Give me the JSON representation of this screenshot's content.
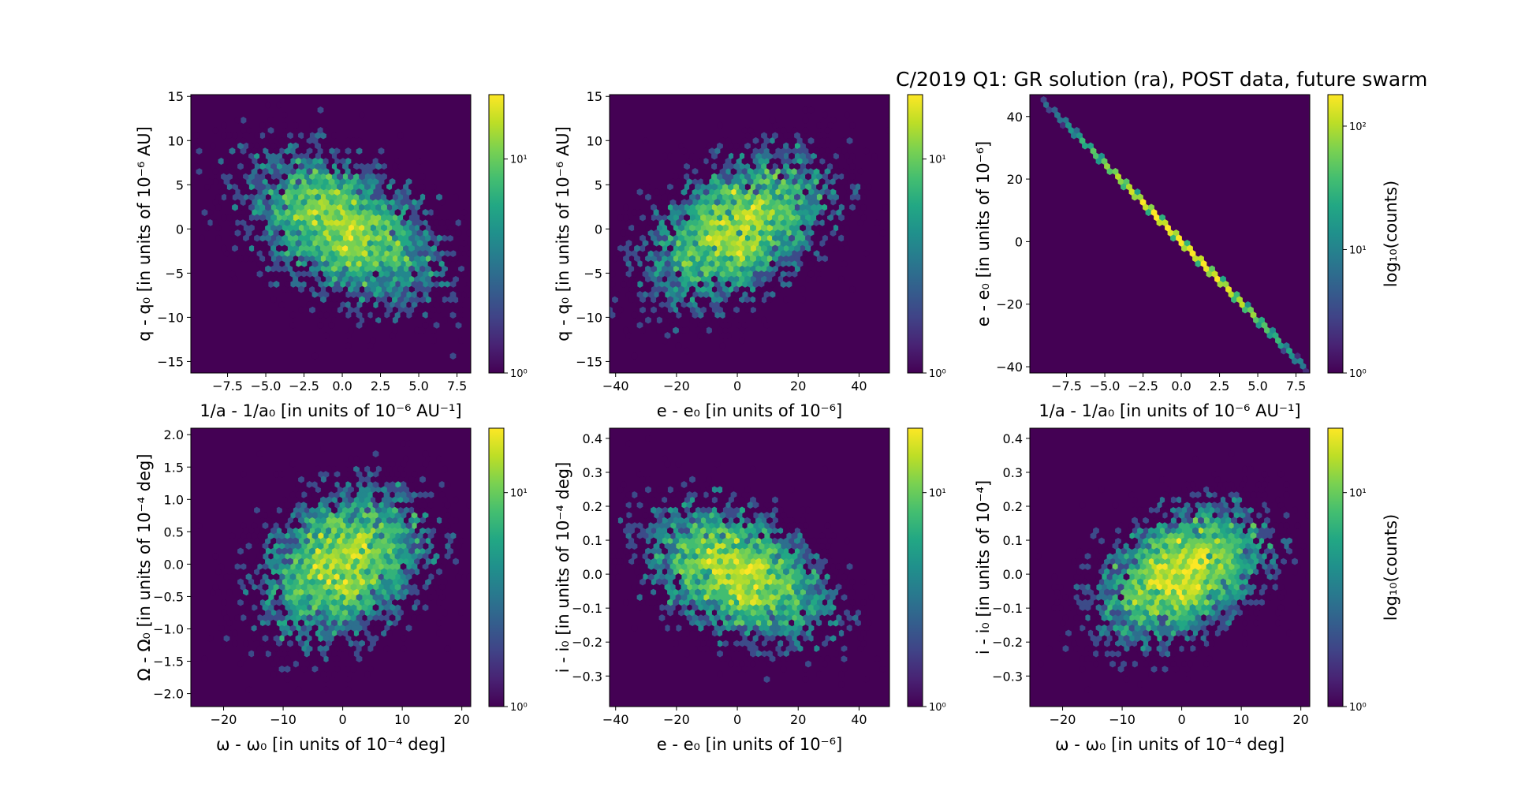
{
  "figure": {
    "title": "C/2019 Q1: GR solution (ra), POST data, future swarm"
  },
  "colors": {
    "viridis_low": "#440154",
    "viridis_mid": "#21918c",
    "viridis_high": "#fde725",
    "axis": "#000000"
  },
  "chart_data": [
    {
      "type": "heatmap",
      "subtype": "hexbin",
      "panel": "top-left",
      "xlabel": "1/a - 1/a₀ [in units of 10⁻⁶ AU⁻¹]",
      "ylabel": "q - q₀ [in units of 10⁻⁶ AU]",
      "xlim": [
        -9.9,
        8.4
      ],
      "ylim": [
        -16.3,
        15.2
      ],
      "xticks": [
        -7.5,
        -5.0,
        -2.5,
        0.0,
        2.5,
        5.0,
        7.5
      ],
      "xticklabels": [
        "−7.5",
        "−5.0",
        "−2.5",
        "0.0",
        "2.5",
        "5.0",
        "7.5"
      ],
      "yticks": [
        -15,
        -10,
        -5,
        0,
        5,
        10,
        15
      ],
      "yticklabels": [
        "−15",
        "−10",
        "−5",
        "0",
        "5",
        "10",
        "15"
      ],
      "distribution": {
        "center": [
          0,
          0
        ],
        "sd": [
          3.2,
          4.3
        ],
        "correlation": -0.45,
        "peak_count": 20,
        "points": 5000
      },
      "colorbar": {
        "scale": "log",
        "min": 1,
        "max": 20,
        "ticks": [
          "10⁰",
          "10¹"
        ],
        "label": ""
      }
    },
    {
      "type": "heatmap",
      "subtype": "hexbin",
      "panel": "top-middle",
      "xlabel": "e - e₀ [in units of 10⁻⁶]",
      "ylabel": "q - q₀ [in units of 10⁻⁶ AU]",
      "xlim": [
        -42,
        50
      ],
      "ylim": [
        -16.3,
        15.2
      ],
      "xticks": [
        -40,
        -20,
        0,
        20,
        40
      ],
      "xticklabels": [
        "−40",
        "−20",
        "0",
        "20",
        "40"
      ],
      "yticks": [
        -15,
        -10,
        -5,
        0,
        5,
        10,
        15
      ],
      "yticklabels": [
        "−15",
        "−10",
        "−5",
        "0",
        "5",
        "10",
        "15"
      ],
      "distribution": {
        "center": [
          0,
          0
        ],
        "sd": [
          15,
          4.3
        ],
        "correlation": 0.45,
        "peak_count": 20,
        "points": 5000
      },
      "colorbar": {
        "scale": "log",
        "min": 1,
        "max": 20,
        "ticks": [
          "10⁰",
          "10¹"
        ],
        "label": ""
      }
    },
    {
      "type": "heatmap",
      "subtype": "hexbin",
      "panel": "top-right",
      "xlabel": "1/a - 1/a₀ [in units of 10⁻⁶ AU⁻¹]",
      "ylabel": "e - e₀ [in units of 10⁻⁶]",
      "xlim": [
        -9.9,
        8.4
      ],
      "ylim": [
        -42,
        47
      ],
      "xticks": [
        -7.5,
        -5.0,
        -2.5,
        0.0,
        2.5,
        5.0,
        7.5
      ],
      "xticklabels": [
        "−7.5",
        "−5.0",
        "−2.5",
        "0.0",
        "2.5",
        "5.0",
        "7.5"
      ],
      "yticks": [
        -40,
        -20,
        0,
        20,
        40
      ],
      "yticklabels": [
        "−40",
        "−20",
        "0",
        "20",
        "40"
      ],
      "distribution": {
        "center": [
          0,
          0
        ],
        "line_slope": -5.0,
        "line_from": -9.0,
        "line_to": 8.2,
        "peak_count": 180
      },
      "colorbar": {
        "scale": "log",
        "min": 1,
        "max": 180,
        "ticks": [
          "10⁰",
          "10¹",
          "10²"
        ],
        "label": "log₁₀(counts)"
      }
    },
    {
      "type": "heatmap",
      "subtype": "hexbin",
      "panel": "bottom-left",
      "xlabel": "ω - ω₀ [in units of 10⁻⁴ deg]",
      "ylabel": "Ω - Ω₀ [in units of 10⁻⁴ deg]",
      "xlim": [
        -25.5,
        21.5
      ],
      "ylim": [
        -2.2,
        2.1
      ],
      "xticks": [
        -20,
        -10,
        0,
        10,
        20
      ],
      "xticklabels": [
        "−20",
        "−10",
        "0",
        "10",
        "20"
      ],
      "yticks": [
        -2.0,
        -1.5,
        -1.0,
        -0.5,
        0.0,
        0.5,
        1.0,
        1.5,
        2.0
      ],
      "yticklabels": [
        "−2.0",
        "−1.5",
        "−1.0",
        "−0.5",
        "0.0",
        "0.5",
        "1.0",
        "1.5",
        "2.0"
      ],
      "distribution": {
        "center": [
          0,
          0
        ],
        "sd": [
          7,
          0.6
        ],
        "correlation": 0.3,
        "peak_count": 20,
        "points": 5000
      },
      "colorbar": {
        "scale": "log",
        "min": 1,
        "max": 20,
        "ticks": [
          "10⁰",
          "10¹"
        ],
        "label": ""
      }
    },
    {
      "type": "heatmap",
      "subtype": "hexbin",
      "panel": "bottom-middle",
      "xlabel": "e - e₀ [in units of 10⁻⁶]",
      "ylabel": "i - i₀ [in units of 10⁻⁴ deg]",
      "xlim": [
        -42,
        50
      ],
      "ylim": [
        -0.39,
        0.43
      ],
      "xticks": [
        -40,
        -20,
        0,
        20,
        40
      ],
      "xticklabels": [
        "−40",
        "−20",
        "0",
        "20",
        "40"
      ],
      "yticks": [
        -0.3,
        -0.2,
        -0.1,
        0.0,
        0.1,
        0.2,
        0.3,
        0.4
      ],
      "yticklabels": [
        "−0.3",
        "−0.2",
        "−0.1",
        "0.0",
        "0.1",
        "0.2",
        "0.3",
        "0.4"
      ],
      "distribution": {
        "center": [
          0,
          0
        ],
        "sd": [
          15,
          0.1
        ],
        "correlation": -0.4,
        "peak_count": 20,
        "points": 5000
      },
      "colorbar": {
        "scale": "log",
        "min": 1,
        "max": 20,
        "ticks": [
          "10⁰",
          "10¹"
        ],
        "label": ""
      }
    },
    {
      "type": "heatmap",
      "subtype": "hexbin",
      "panel": "bottom-right",
      "xlabel": "ω - ω₀ [in units of 10⁻⁴ deg]",
      "ylabel": "i - i₀ [in units of 10⁻⁴]",
      "xlim": [
        -25.5,
        21.5
      ],
      "ylim": [
        -0.39,
        0.43
      ],
      "xticks": [
        -20,
        -10,
        0,
        10,
        20
      ],
      "xticklabels": [
        "−20",
        "−10",
        "0",
        "10",
        "20"
      ],
      "yticks": [
        -0.3,
        -0.2,
        -0.1,
        0.0,
        0.1,
        0.2,
        0.3,
        0.4
      ],
      "yticklabels": [
        "−0.3",
        "−0.2",
        "−0.1",
        "0.0",
        "0.1",
        "0.2",
        "0.3",
        "0.4"
      ],
      "distribution": {
        "center": [
          0,
          0
        ],
        "sd": [
          7,
          0.1
        ],
        "correlation": 0.4,
        "peak_count": 20,
        "points": 5000
      },
      "colorbar": {
        "scale": "log",
        "min": 1,
        "max": 20,
        "ticks": [
          "10⁰",
          "10¹"
        ],
        "label": "log₁₀(counts)"
      }
    }
  ]
}
